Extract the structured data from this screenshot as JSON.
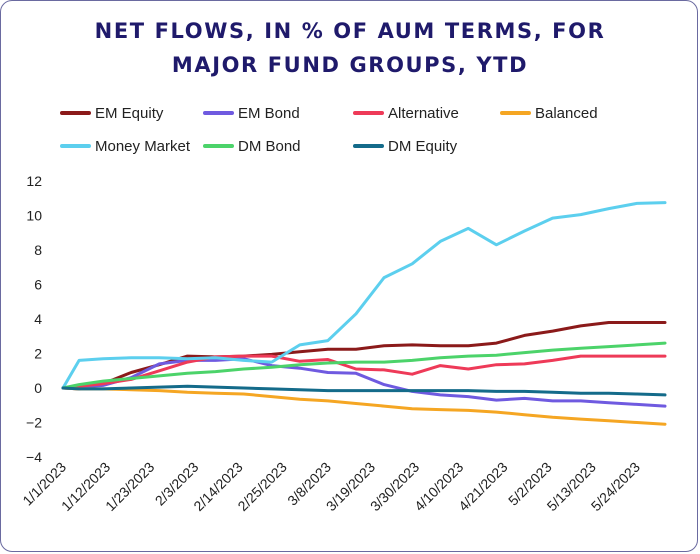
{
  "title_line1": "NET FLOWS, IN % OF AUM TERMS, FOR",
  "title_line2": "MAJOR FUND GROUPS, YTD",
  "chart_data": {
    "type": "line",
    "title": "NET FLOWS, IN % OF AUM TERMS, FOR MAJOR FUND GROUPS, YTD",
    "xlabel": "",
    "ylabel": "",
    "ylim": [
      -4,
      12
    ],
    "yticks": [
      -4,
      -2,
      0,
      2,
      4,
      6,
      8,
      10,
      12
    ],
    "grid": false,
    "legend_position": "top",
    "x_tick_labels": [
      "1/1/2023",
      "1/12/2023",
      "1/23/2023",
      "2/3/2023",
      "2/14/2023",
      "2/25/2023",
      "3/8/2023",
      "3/19/2023",
      "3/30/2023",
      "4/10/2023",
      "4/21/2023",
      "5/2/2023",
      "5/13/2023",
      "5/24/2023"
    ],
    "x": [
      "2023-01-01",
      "2023-01-05",
      "2023-01-11",
      "2023-01-18",
      "2023-01-25",
      "2023-02-01",
      "2023-02-08",
      "2023-02-15",
      "2023-02-22",
      "2023-03-01",
      "2023-03-08",
      "2023-03-15",
      "2023-03-22",
      "2023-03-29",
      "2023-04-05",
      "2023-04-12",
      "2023-04-19",
      "2023-04-26",
      "2023-05-03",
      "2023-05-10",
      "2023-05-17",
      "2023-05-24",
      "2023-05-31"
    ],
    "series": [
      {
        "name": "EM Equity",
        "color": "#8b1a1a",
        "values": [
          0,
          -0.05,
          0.25,
          0.9,
          1.35,
          1.85,
          1.8,
          1.85,
          1.95,
          2.1,
          2.25,
          2.25,
          2.45,
          2.5,
          2.45,
          2.45,
          2.6,
          3.05,
          3.3,
          3.6,
          3.8,
          3.8,
          3.8
        ]
      },
      {
        "name": "EM Bond",
        "color": "#6f5ae0",
        "values": [
          0,
          0.05,
          0.15,
          0.6,
          1.4,
          1.6,
          1.6,
          1.7,
          1.3,
          1.15,
          0.9,
          0.85,
          0.2,
          -0.2,
          -0.4,
          -0.5,
          -0.7,
          -0.6,
          -0.75,
          -0.75,
          -0.85,
          -0.95,
          -1.05
        ]
      },
      {
        "name": "Alternative",
        "color": "#ee3a58",
        "values": [
          0,
          0.1,
          0.25,
          0.5,
          1.0,
          1.5,
          1.8,
          1.85,
          1.85,
          1.55,
          1.65,
          1.1,
          1.05,
          0.8,
          1.3,
          1.1,
          1.35,
          1.4,
          1.6,
          1.85,
          1.85,
          1.85,
          1.85
        ]
      },
      {
        "name": "Balanced",
        "color": "#f5a623",
        "values": [
          0,
          -0.05,
          -0.05,
          -0.1,
          -0.15,
          -0.25,
          -0.3,
          -0.35,
          -0.5,
          -0.65,
          -0.75,
          -0.9,
          -1.05,
          -1.2,
          -1.25,
          -1.3,
          -1.4,
          -1.55,
          -1.7,
          -1.8,
          -1.9,
          -2.0,
          -2.1
        ]
      },
      {
        "name": "Money Market",
        "color": "#5ccfee",
        "values": [
          0,
          1.6,
          1.7,
          1.75,
          1.75,
          1.7,
          1.75,
          1.6,
          1.5,
          2.5,
          2.75,
          4.3,
          6.4,
          7.2,
          8.5,
          9.25,
          8.3,
          9.1,
          9.85,
          10.05,
          10.4,
          10.7,
          10.75
        ]
      },
      {
        "name": "DM Bond",
        "color": "#4cd36a",
        "values": [
          0,
          0.2,
          0.4,
          0.55,
          0.7,
          0.85,
          0.95,
          1.1,
          1.2,
          1.35,
          1.45,
          1.5,
          1.5,
          1.6,
          1.75,
          1.85,
          1.9,
          2.05,
          2.2,
          2.3,
          2.4,
          2.5,
          2.6
        ]
      },
      {
        "name": "DM Equity",
        "color": "#146b8a",
        "values": [
          0,
          -0.05,
          -0.05,
          0,
          0.05,
          0.1,
          0.05,
          0.0,
          -0.05,
          -0.1,
          -0.15,
          -0.15,
          -0.15,
          -0.15,
          -0.15,
          -0.15,
          -0.2,
          -0.2,
          -0.25,
          -0.3,
          -0.3,
          -0.35,
          -0.4
        ]
      }
    ]
  }
}
